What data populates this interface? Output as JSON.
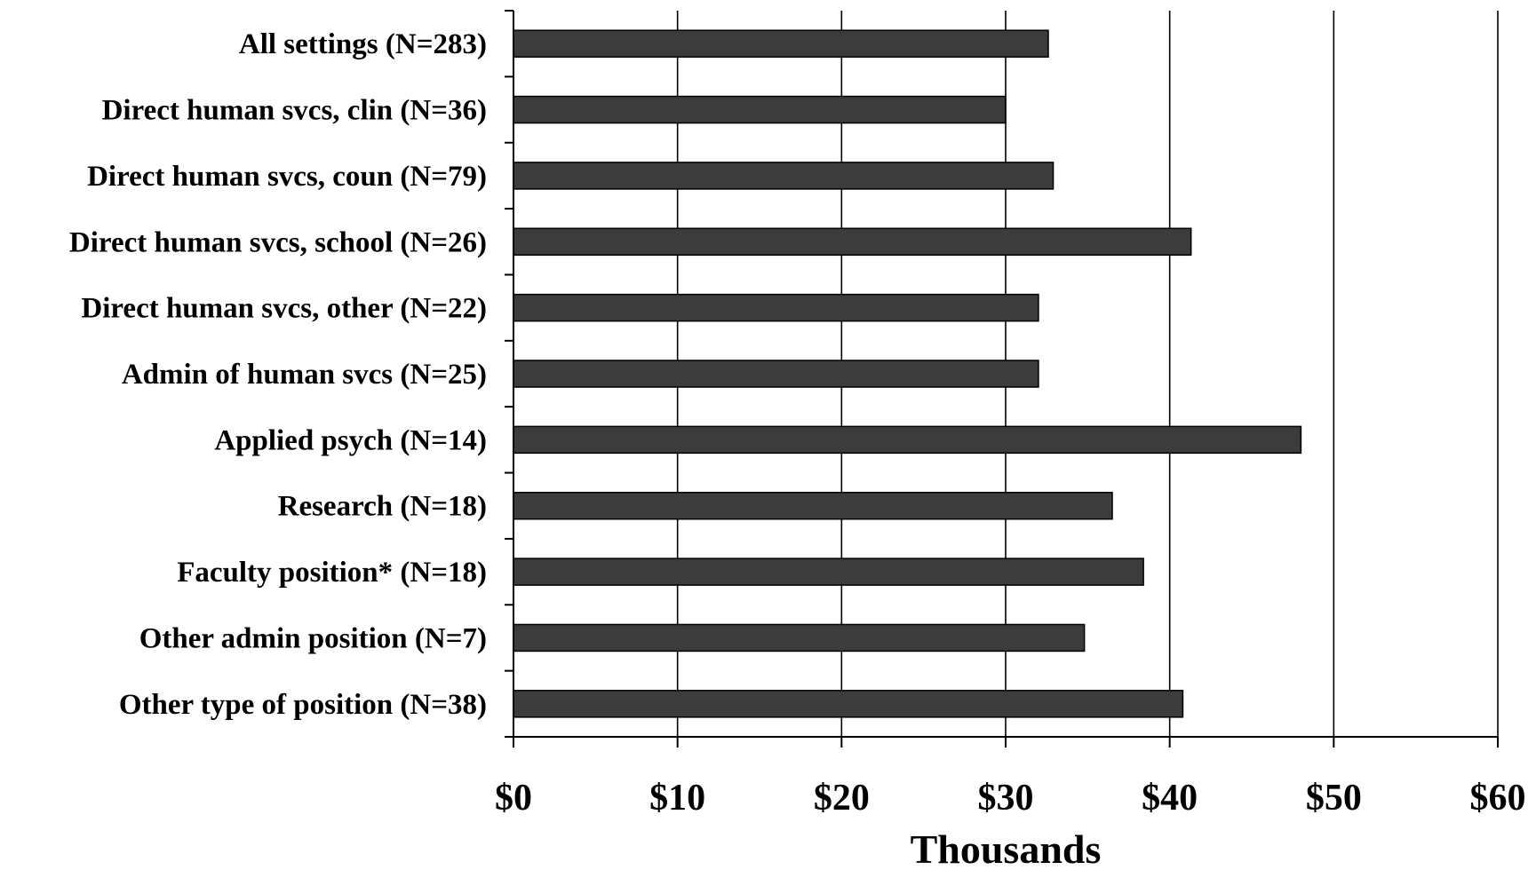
{
  "chart_data": {
    "type": "bar",
    "orientation": "horizontal",
    "categories": [
      "All settings (N=283)",
      "Direct human svcs, clin (N=36)",
      "Direct human svcs, coun (N=79)",
      "Direct human svcs, school (N=26)",
      "Direct human svcs, other (N=22)",
      "Admin of human svcs (N=25)",
      "Applied psych (N=14)",
      "Research (N=18)",
      "Faculty position* (N=18)",
      "Other admin position (N=7)",
      "Other type of position (N=38)"
    ],
    "values": [
      32.6,
      30.0,
      32.9,
      41.3,
      32.0,
      32.0,
      48.0,
      36.5,
      38.4,
      34.8,
      40.8
    ],
    "title": "",
    "xlabel": "Thousands",
    "ylabel": "",
    "xlim": [
      0,
      60
    ],
    "xticks": [
      0,
      10,
      20,
      30,
      40,
      50,
      60
    ],
    "xtick_labels": [
      "$0",
      "$10",
      "$20",
      "$30",
      "$40",
      "$50",
      "$60"
    ],
    "grid": "vertical",
    "legend": "none",
    "bar_color": "#3c3c3c"
  }
}
